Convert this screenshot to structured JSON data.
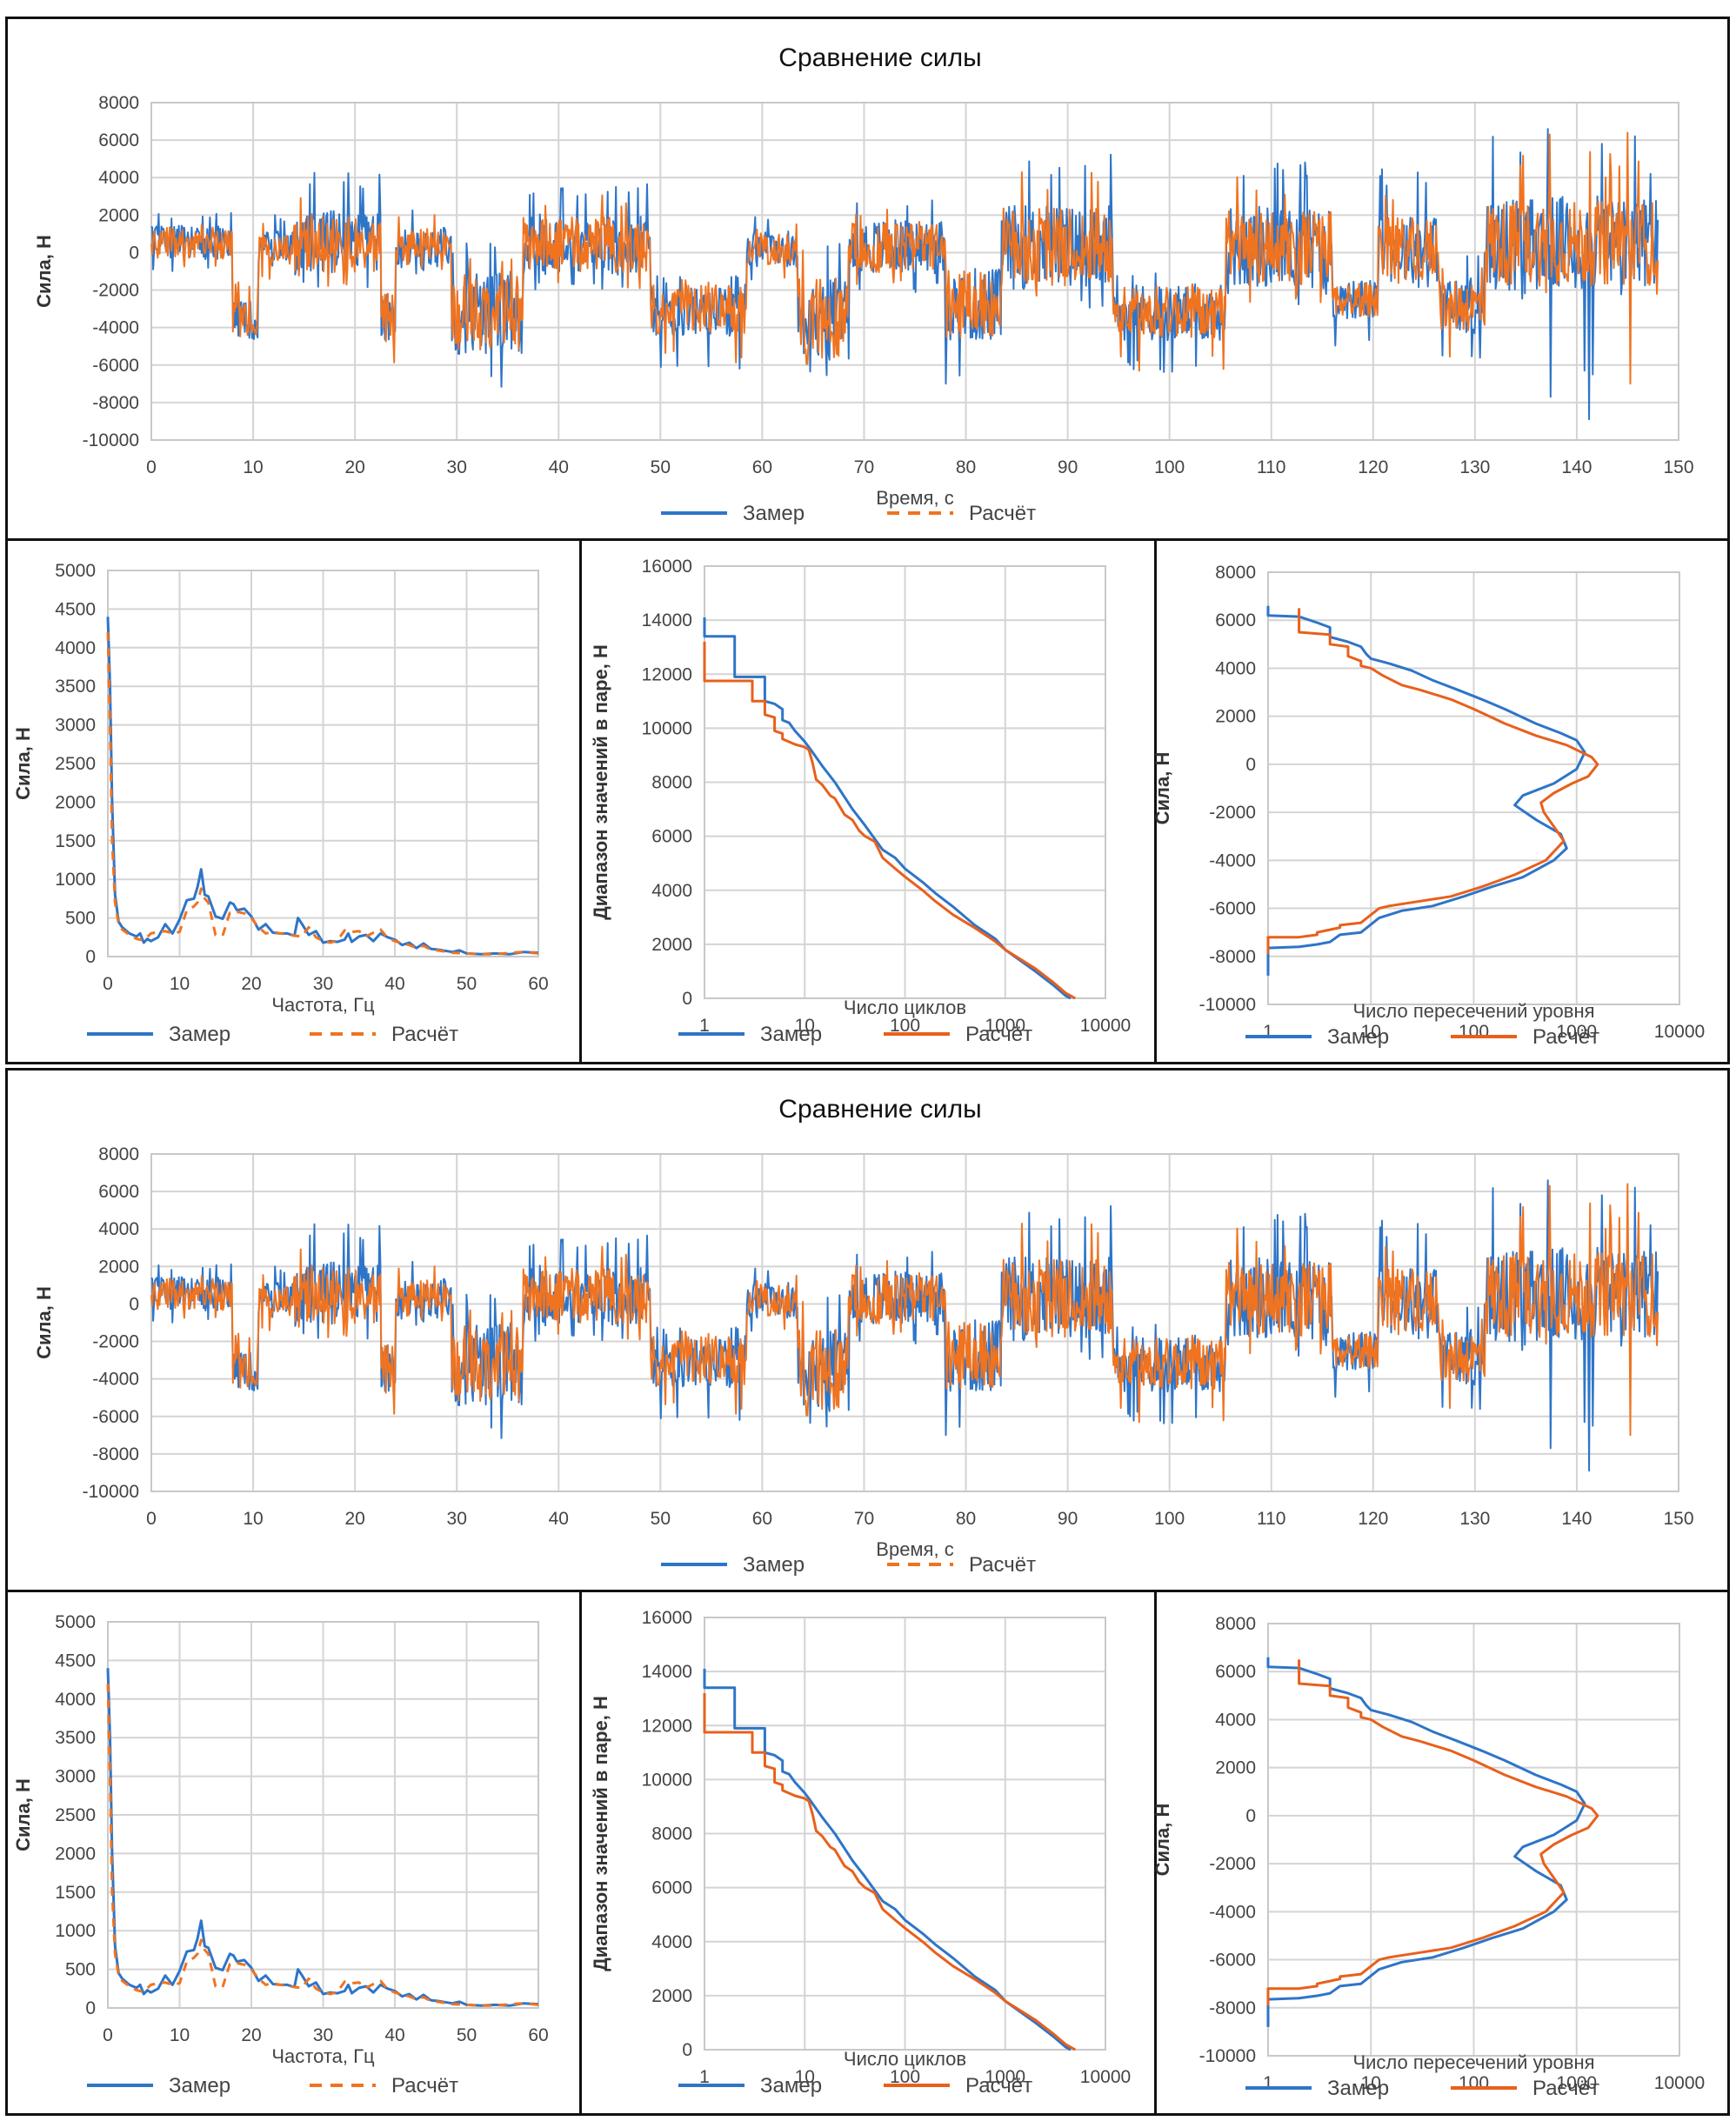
{
  "colors": {
    "measured": "#2e75c8",
    "computed": "#f07320",
    "computed_solid": "#e8601c"
  },
  "figure_blocks": [
    {
      "id": "block-1"
    },
    {
      "id": "block-2"
    }
  ],
  "chart_data": [
    {
      "id": "time",
      "type": "line",
      "title": "Сравнение силы",
      "xlabel": "Время, с",
      "ylabel": "Сила, Н",
      "xlim": [
        0,
        150
      ],
      "ylim": [
        -10000,
        8000
      ],
      "xticks": [
        "0",
        "10",
        "20",
        "30",
        "40",
        "50",
        "60",
        "70",
        "80",
        "90",
        "100",
        "110",
        "120",
        "130",
        "140",
        "150"
      ],
      "yticks": [
        "8000",
        "6000",
        "4000",
        "2000",
        "0",
        "-2000",
        "-4000",
        "-6000",
        "-8000",
        "-10000"
      ],
      "grid": true,
      "legend_position": "bottom",
      "series": [
        {
          "name": "Замер",
          "style": "solid"
        },
        {
          "name": "Расчёт",
          "style": "dashed"
        }
      ],
      "segments_note": "approximate envelope [t_start, t_end, mean, upper, lower]",
      "segments": [
        [
          0,
          8,
          500,
          2200,
          -1200
        ],
        [
          8,
          10.5,
          -3500,
          -1000,
          -5300
        ],
        [
          10.5,
          14,
          200,
          2000,
          -1500
        ],
        [
          14,
          22.5,
          500,
          4300,
          -2000
        ],
        [
          22.5,
          24,
          -3500,
          -800,
          -6700
        ],
        [
          24,
          29.5,
          300,
          2800,
          -1200
        ],
        [
          29.5,
          36.5,
          -3200,
          500,
          -7600
        ],
        [
          36.5,
          49,
          400,
          3800,
          -2200
        ],
        [
          49,
          58.5,
          -3000,
          -1000,
          -6300
        ],
        [
          58.5,
          63.5,
          200,
          2000,
          -1500
        ],
        [
          63.5,
          68.5,
          -3500,
          1500,
          -7000
        ],
        [
          68.5,
          78,
          300,
          3200,
          -2200
        ],
        [
          78,
          83.5,
          -2800,
          -500,
          -7800
        ],
        [
          83.5,
          94.5,
          300,
          5300,
          -3000
        ],
        [
          94.5,
          105.5,
          -3200,
          -1000,
          -6500
        ],
        [
          105.5,
          116,
          300,
          5200,
          -3000
        ],
        [
          116,
          120.5,
          -2500,
          -1500,
          -5300
        ],
        [
          120.5,
          126.5,
          200,
          4600,
          -2000
        ],
        [
          126.5,
          131,
          -2800,
          0,
          -5700
        ],
        [
          131,
          148,
          500,
          6600,
          -2500
        ]
      ],
      "spikes": {
        "Замер": [
          [
            137.2,
            6600
          ],
          [
            137.4,
            -7700
          ],
          [
            141.2,
            -8900
          ],
          [
            140.8,
            -6300
          ],
          [
            141.6,
            -6500
          ],
          [
            147.2,
            4200
          ]
        ],
        "Расчёт": [
          [
            137.3,
            6300
          ],
          [
            145.0,
            6400
          ],
          [
            145.3,
            -7000
          ],
          [
            144.2,
            4600
          ]
        ]
      }
    },
    {
      "id": "spectrum",
      "type": "line",
      "xlabel": "Частота, Гц",
      "ylabel": "Сила, Н",
      "xlim": [
        0,
        60
      ],
      "ylim": [
        0,
        5000
      ],
      "xticks": [
        "0",
        "10",
        "20",
        "30",
        "40",
        "50",
        "60"
      ],
      "yticks": [
        "5000",
        "4500",
        "4000",
        "3500",
        "3000",
        "2500",
        "2000",
        "1500",
        "1000",
        "500",
        "0"
      ],
      "grid": true,
      "legend_position": "bottom",
      "series": [
        {
          "name": "Замер",
          "style": "solid",
          "x": [
            0,
            0.3,
            0.6,
            1,
            1.5,
            2,
            3,
            4,
            4.5,
            5,
            5.5,
            6,
            7,
            8,
            9,
            10,
            11,
            12,
            12.5,
            13,
            13.5,
            14,
            15,
            16,
            17,
            17.5,
            18,
            19,
            20,
            21,
            22,
            23,
            24,
            25,
            26,
            26.5,
            27,
            28,
            29,
            30,
            31,
            32,
            33,
            33.5,
            34,
            35,
            36,
            37,
            38,
            39,
            40,
            41,
            42,
            43,
            44,
            45,
            46,
            48,
            49,
            50,
            52,
            54,
            56,
            58,
            60
          ],
          "y": [
            4400,
            3500,
            2000,
            800,
            450,
            380,
            300,
            260,
            300,
            180,
            230,
            200,
            250,
            420,
            300,
            480,
            730,
            750,
            900,
            1130,
            800,
            780,
            520,
            490,
            700,
            680,
            600,
            620,
            520,
            350,
            420,
            310,
            300,
            300,
            270,
            500,
            430,
            280,
            330,
            180,
            200,
            190,
            220,
            300,
            190,
            260,
            280,
            200,
            300,
            250,
            220,
            150,
            180,
            110,
            170,
            100,
            90,
            60,
            80,
            40,
            30,
            40,
            30,
            60,
            50
          ]
        },
        {
          "name": "Расчёт",
          "style": "dashed",
          "x": [
            0,
            0.3,
            0.6,
            1,
            1.5,
            2,
            3,
            4,
            5,
            6,
            7,
            8,
            9,
            10,
            11,
            12,
            12.5,
            13,
            13.5,
            14,
            15,
            16,
            17,
            18,
            19,
            20,
            21,
            22,
            23,
            24,
            25,
            26,
            27,
            28,
            29,
            30,
            31,
            32,
            33,
            34,
            35,
            36,
            37,
            38,
            39,
            40,
            41,
            42,
            43,
            44,
            45,
            46,
            48,
            50,
            52,
            54,
            56,
            58,
            60
          ],
          "y": [
            4200,
            3000,
            1500,
            700,
            420,
            350,
            280,
            230,
            210,
            300,
            320,
            330,
            300,
            320,
            600,
            650,
            700,
            880,
            750,
            700,
            280,
            270,
            570,
            580,
            560,
            500,
            380,
            300,
            320,
            300,
            290,
            270,
            260,
            380,
            250,
            200,
            180,
            210,
            340,
            320,
            330,
            260,
            310,
            350,
            240,
            200,
            170,
            150,
            110,
            140,
            90,
            80,
            50,
            40,
            30,
            30,
            50,
            60,
            40
          ]
        }
      ]
    },
    {
      "id": "rainflow",
      "type": "line",
      "xscale": "log",
      "xlabel": "Число циклов",
      "ylabel": "Диапазон значений в паре, Н",
      "xlim": [
        1,
        10000
      ],
      "ylim": [
        0,
        16000
      ],
      "xticks": [
        "1",
        "10",
        "100",
        "1000",
        "10000"
      ],
      "yticks": [
        "16000",
        "14000",
        "12000",
        "10000",
        "8000",
        "6000",
        "4000",
        "2000",
        "0"
      ],
      "grid": true,
      "legend_position": "bottom",
      "series": [
        {
          "name": "Замер",
          "style": "solid",
          "x": [
            1,
            1,
            2,
            2,
            4,
            4,
            5,
            6,
            6,
            7,
            8,
            10,
            11,
            12,
            15,
            20,
            30,
            40,
            50,
            60,
            80,
            100,
            150,
            200,
            300,
            500,
            800,
            1000,
            2000,
            3000,
            4000,
            4500
          ],
          "y": [
            14100,
            13400,
            13400,
            11900,
            11900,
            11000,
            10900,
            10700,
            10300,
            10200,
            9900,
            9500,
            9300,
            9100,
            8600,
            8000,
            7000,
            6400,
            5900,
            5500,
            5200,
            4800,
            4300,
            3900,
            3400,
            2700,
            2200,
            1800,
            1000,
            500,
            100,
            0
          ]
        },
        {
          "name": "Расчёт",
          "style": "solid",
          "x": [
            1,
            1,
            3,
            3,
            4,
            4,
            5,
            5,
            6,
            6,
            8,
            10,
            11,
            12,
            13,
            15,
            18,
            20,
            25,
            30,
            35,
            40,
            50,
            60,
            80,
            100,
            150,
            200,
            300,
            500,
            800,
            1000,
            2000,
            3000,
            4000,
            5000
          ],
          "y": [
            13200,
            11750,
            11750,
            11000,
            11000,
            10500,
            10400,
            9900,
            9800,
            9600,
            9400,
            9300,
            9200,
            8700,
            8100,
            7900,
            7500,
            7400,
            6800,
            6600,
            6200,
            6000,
            5800,
            5200,
            4800,
            4500,
            4000,
            3600,
            3100,
            2600,
            2100,
            1800,
            1100,
            600,
            200,
            0
          ]
        }
      ]
    },
    {
      "id": "crossings",
      "type": "line",
      "xscale": "log",
      "xlabel": "Число пересечений уровня",
      "ylabel": "Сила, Н",
      "xlim": [
        1,
        10000
      ],
      "ylim": [
        -10000,
        8000
      ],
      "xticks": [
        "1",
        "10",
        "100",
        "1000",
        "10000"
      ],
      "yticks": [
        "8000",
        "6000",
        "4000",
        "2000",
        "0",
        "-2000",
        "-4000",
        "-6000",
        "-8000",
        "-10000"
      ],
      "grid": true,
      "legend_position": "bottom",
      "series": [
        {
          "name": "Замер",
          "style": "solid",
          "x": [
            1,
            1,
            2,
            3,
            4,
            4,
            6,
            8,
            9,
            10,
            15,
            25,
            40,
            70,
            120,
            200,
            400,
            700,
            1000,
            1200,
            1000,
            600,
            300,
            250,
            400,
            700,
            800,
            600,
            300,
            150,
            80,
            40,
            20,
            12,
            8,
            5,
            4,
            3,
            2,
            1,
            1
          ],
          "y": [
            6600,
            6200,
            6150,
            5900,
            5700,
            5300,
            5100,
            4900,
            4600,
            4400,
            4200,
            3900,
            3500,
            3100,
            2700,
            2300,
            1700,
            1300,
            1000,
            500,
            -200,
            -800,
            -1300,
            -1700,
            -2300,
            -2900,
            -3500,
            -4000,
            -4700,
            -5100,
            -5500,
            -5900,
            -6100,
            -6400,
            -7000,
            -7100,
            -7400,
            -7500,
            -7600,
            -7650,
            -8800
          ]
        },
        {
          "name": "Расчёт",
          "style": "solid",
          "x": [
            2,
            2,
            4,
            4,
            6,
            6,
            8,
            8,
            10,
            13,
            20,
            30,
            60,
            100,
            200,
            400,
            800,
            1400,
            1600,
            1300,
            900,
            600,
            450,
            480,
            650,
            750,
            500,
            250,
            120,
            60,
            30,
            15,
            12,
            8,
            5,
            5,
            3,
            3,
            2,
            1,
            1
          ],
          "y": [
            6500,
            5500,
            5400,
            5000,
            4900,
            4500,
            4300,
            4100,
            4000,
            3700,
            3300,
            3100,
            2700,
            2300,
            1700,
            1200,
            800,
            300,
            0,
            -500,
            -800,
            -1200,
            -1600,
            -2000,
            -2800,
            -3200,
            -4000,
            -4600,
            -5100,
            -5500,
            -5700,
            -5900,
            -6000,
            -6600,
            -6700,
            -6800,
            -7000,
            -7100,
            -7200,
            -7200,
            -7900
          ]
        }
      ]
    }
  ]
}
